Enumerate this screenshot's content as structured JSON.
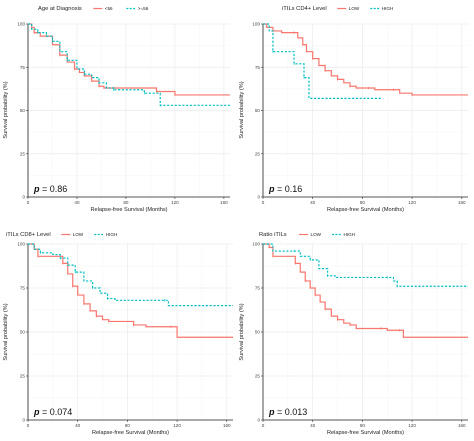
{
  "chart_data": [
    {
      "type": "line",
      "legend": {
        "title": "Age at Diagnosis",
        "placement": "top"
      },
      "xlabel": "Relapse-free Survival (Months)",
      "ylabel": "Survival probability (%)",
      "xlim": [
        0,
        165
      ],
      "ylim": [
        0,
        100
      ],
      "xticks": [
        0,
        40,
        80,
        120,
        160
      ],
      "yticks": [
        0,
        25,
        50,
        75,
        100
      ],
      "annotation": {
        "p": "p",
        "text": " = 0.86"
      },
      "series": [
        {
          "name": "<56",
          "color": "#f8766d",
          "style": "solid",
          "points": [
            [
              0,
              100
            ],
            [
              3,
              98
            ],
            [
              5,
              95
            ],
            [
              10,
              93
            ],
            [
              15,
              93
            ],
            [
              20,
              88
            ],
            [
              26,
              82
            ],
            [
              32,
              78
            ],
            [
              38,
              74
            ],
            [
              42,
              72
            ],
            [
              46,
              70
            ],
            [
              52,
              67
            ],
            [
              58,
              64
            ],
            [
              62,
              63
            ],
            [
              70,
              63
            ],
            [
              100,
              63
            ],
            [
              105,
              61
            ],
            [
              115,
              61
            ],
            [
              120,
              59
            ],
            [
              165,
              59
            ]
          ]
        },
        {
          "name": ">=56",
          "color": "#00bfc4",
          "style": "dashed",
          "points": [
            [
              0,
              100
            ],
            [
              3,
              97
            ],
            [
              8,
              95
            ],
            [
              15,
              93
            ],
            [
              20,
              90
            ],
            [
              26,
              84
            ],
            [
              32,
              79
            ],
            [
              40,
              74
            ],
            [
              46,
              71
            ],
            [
              52,
              69
            ],
            [
              58,
              66
            ],
            [
              64,
              63
            ],
            [
              70,
              62
            ],
            [
              90,
              62
            ],
            [
              95,
              60
            ],
            [
              105,
              60
            ],
            [
              108,
              53
            ],
            [
              165,
              53
            ]
          ]
        }
      ]
    },
    {
      "type": "line",
      "legend": {
        "title": "iTILs CD4+ Level",
        "placement": "top"
      },
      "xlabel": "Relapse-free Survival (Months)",
      "ylabel": "Survival probability (%)",
      "xlim": [
        0,
        165
      ],
      "ylim": [
        0,
        100
      ],
      "xticks": [
        0,
        40,
        80,
        120,
        160
      ],
      "yticks": [
        0,
        25,
        50,
        75,
        100
      ],
      "annotation": {
        "p": "p",
        "text": " = 0.16"
      },
      "series": [
        {
          "name": "LOW",
          "color": "#f8766d",
          "style": "solid",
          "points": [
            [
              0,
              100
            ],
            [
              3,
              98
            ],
            [
              8,
              96
            ],
            [
              15,
              95
            ],
            [
              25,
              95
            ],
            [
              28,
              92
            ],
            [
              32,
              88
            ],
            [
              35,
              84
            ],
            [
              40,
              80
            ],
            [
              45,
              76
            ],
            [
              50,
              73
            ],
            [
              55,
              70
            ],
            [
              60,
              68
            ],
            [
              65,
              66
            ],
            [
              70,
              64
            ],
            [
              75,
              63
            ],
            [
              85,
              63
            ],
            [
              90,
              62
            ],
            [
              105,
              62
            ],
            [
              110,
              60
            ],
            [
              120,
              59
            ],
            [
              165,
              59
            ]
          ]
        },
        {
          "name": "HIGH",
          "color": "#00bfc4",
          "style": "dashed",
          "points": [
            [
              0,
              100
            ],
            [
              5,
              96
            ],
            [
              8,
              84
            ],
            [
              22,
              84
            ],
            [
              25,
              77
            ],
            [
              30,
              77
            ],
            [
              33,
              69
            ],
            [
              37,
              57
            ],
            [
              95,
              57
            ]
          ]
        }
      ]
    },
    {
      "type": "line",
      "legend": {
        "title": "iTILs CD8+ Level",
        "placement": "top"
      },
      "xlabel": "Relapse-free Survival (Months)",
      "ylabel": "Survival probability (%)",
      "xlim": [
        0,
        165
      ],
      "ylim": [
        0,
        100
      ],
      "xticks": [
        0,
        40,
        80,
        120,
        160
      ],
      "yticks": [
        0,
        25,
        50,
        75,
        100
      ],
      "annotation": {
        "p": "p",
        "text": " = 0.074"
      },
      "series": [
        {
          "name": "LOW",
          "color": "#f8766d",
          "style": "solid",
          "points": [
            [
              0,
              100
            ],
            [
              5,
              97
            ],
            [
              8,
              93
            ],
            [
              25,
              93
            ],
            [
              28,
              89
            ],
            [
              32,
              83
            ],
            [
              36,
              76
            ],
            [
              40,
              71
            ],
            [
              45,
              66
            ],
            [
              50,
              62
            ],
            [
              55,
              59
            ],
            [
              60,
              57
            ],
            [
              65,
              56
            ],
            [
              80,
              56
            ],
            [
              85,
              54
            ],
            [
              95,
              53
            ],
            [
              115,
              53
            ],
            [
              120,
              47
            ],
            [
              165,
              47
            ]
          ]
        },
        {
          "name": "HIGH",
          "color": "#00bfc4",
          "style": "dashed",
          "points": [
            [
              0,
              100
            ],
            [
              5,
              97
            ],
            [
              10,
              95
            ],
            [
              20,
              94
            ],
            [
              26,
              92
            ],
            [
              32,
              88
            ],
            [
              38,
              84
            ],
            [
              45,
              79
            ],
            [
              52,
              75
            ],
            [
              58,
              72
            ],
            [
              64,
              69
            ],
            [
              70,
              68
            ],
            [
              110,
              68
            ],
            [
              113,
              65
            ],
            [
              165,
              65
            ]
          ]
        }
      ]
    },
    {
      "type": "line",
      "legend": {
        "title": "Ratio iTILs",
        "placement": "top"
      },
      "xlabel": "Relapse-free Survival (Months)",
      "ylabel": "Survival probability (%)",
      "xlim": [
        0,
        165
      ],
      "ylim": [
        0,
        100
      ],
      "xticks": [
        0,
        40,
        80,
        120,
        160
      ],
      "yticks": [
        0,
        25,
        50,
        75,
        100
      ],
      "annotation": {
        "p": "p",
        "text": " = 0.013"
      },
      "series": [
        {
          "name": "LOW",
          "color": "#f8766d",
          "style": "solid",
          "points": [
            [
              0,
              100
            ],
            [
              5,
              98
            ],
            [
              8,
              93
            ],
            [
              22,
              93
            ],
            [
              26,
              89
            ],
            [
              30,
              84
            ],
            [
              34,
              79
            ],
            [
              38,
              75
            ],
            [
              42,
              71
            ],
            [
              46,
              67
            ],
            [
              50,
              63
            ],
            [
              55,
              59
            ],
            [
              60,
              57
            ],
            [
              65,
              55
            ],
            [
              70,
              54
            ],
            [
              75,
              52
            ],
            [
              95,
              52
            ],
            [
              100,
              51
            ],
            [
              110,
              51
            ],
            [
              113,
              47
            ],
            [
              165,
              47
            ]
          ]
        },
        {
          "name": "HIGH",
          "color": "#00bfc4",
          "style": "dashed",
          "points": [
            [
              0,
              100
            ],
            [
              8,
              96
            ],
            [
              25,
              96
            ],
            [
              30,
              93
            ],
            [
              38,
              91
            ],
            [
              45,
              86
            ],
            [
              52,
              82
            ],
            [
              58,
              81
            ],
            [
              100,
              81
            ],
            [
              105,
              79
            ],
            [
              108,
              76
            ],
            [
              165,
              76
            ]
          ]
        }
      ]
    }
  ]
}
